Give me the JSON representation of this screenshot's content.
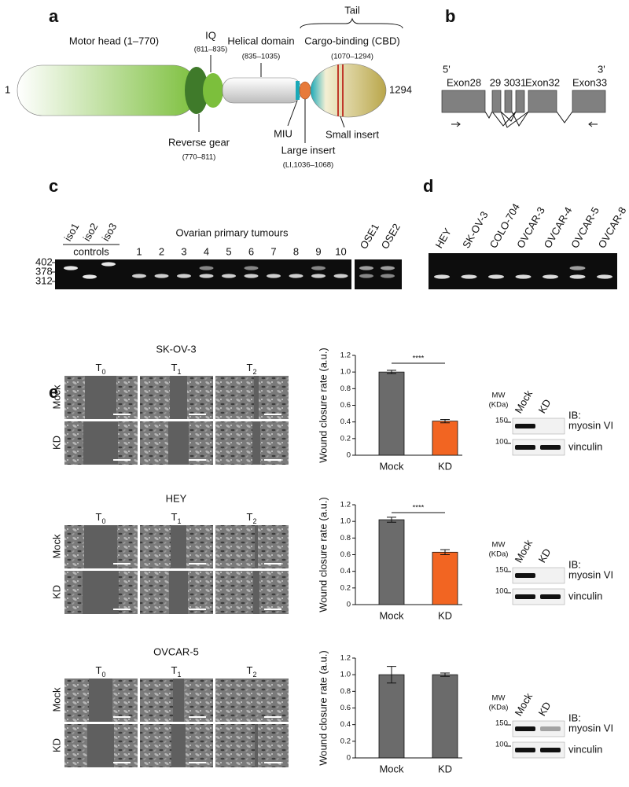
{
  "panel_a": {
    "label": "a",
    "motor_head": "Motor head (1–770)",
    "iq": "IQ",
    "iq_range": "(811–835)",
    "helical": "Helical domain",
    "helical_range": "(835–1035)",
    "cbd": "Cargo-binding (CBD)",
    "cbd_range": "(1070–1294)",
    "tail": "Tail",
    "start": "1",
    "end": "1294",
    "reverse_gear": "Reverse gear",
    "reverse_gear_range": "(770–811)",
    "miu": "MIU",
    "large_insert": "Large insert",
    "large_insert_range": "(LI,1036–1068)",
    "small_insert": "Small insert"
  },
  "panel_b": {
    "label": "b",
    "five_prime": "5'",
    "three_prime": "3'",
    "exons": [
      "Exon28",
      "29",
      "30",
      "31",
      "Exon32",
      "Exon33"
    ]
  },
  "panel_c": {
    "label": "c",
    "lanes": [
      "iso1",
      "iso2",
      "iso3"
    ],
    "controls": "controls",
    "tumours_title": "Ovarian primary tumours",
    "tumours": [
      "1",
      "2",
      "3",
      "4",
      "5",
      "6",
      "7",
      "8",
      "9",
      "10"
    ],
    "ose": [
      "OSE1",
      "OSE2"
    ],
    "sizes": [
      "402",
      "378",
      "312"
    ]
  },
  "panel_d": {
    "label": "d",
    "lanes": [
      "HEY",
      "SK-OV-3",
      "COLO-704",
      "OVCAR-3",
      "OVCAR-4",
      "OVCAR-5",
      "OVCAR-8"
    ]
  },
  "panel_e": {
    "label": "e",
    "blocks": [
      {
        "cell_line": "SK-OV-3",
        "time_points": [
          {
            "base": "T",
            "sub": "0"
          },
          {
            "base": "T",
            "sub": "1"
          },
          {
            "base": "T",
            "sub": "2"
          }
        ],
        "rows": [
          "Mock",
          "KD"
        ],
        "blot": {
          "mw": "MW",
          "unit": "(KDa)",
          "lanes": [
            "Mock",
            "KD"
          ],
          "ib": "IB:",
          "targets": [
            "myosin VI",
            "vinculin"
          ],
          "markers": [
            "150",
            "100"
          ]
        }
      },
      {
        "cell_line": "HEY",
        "time_points": [
          {
            "base": "T",
            "sub": "0"
          },
          {
            "base": "T",
            "sub": "1"
          },
          {
            "base": "T",
            "sub": "2"
          }
        ],
        "rows": [
          "Mock",
          "KD"
        ],
        "blot": {
          "mw": "MW",
          "unit": "(KDa)",
          "lanes": [
            "Mock",
            "KD"
          ],
          "ib": "IB:",
          "targets": [
            "myosin VI",
            "vinculin"
          ],
          "markers": [
            "150",
            "100"
          ]
        }
      },
      {
        "cell_line": "OVCAR-5",
        "time_points": [
          {
            "base": "T",
            "sub": "0"
          },
          {
            "base": "T",
            "sub": "1"
          },
          {
            "base": "T",
            "sub": "2"
          }
        ],
        "rows": [
          "Mock",
          "KD"
        ],
        "blot": {
          "mw": "MW",
          "unit": "(KDa)",
          "lanes": [
            "Mock",
            "KD"
          ],
          "ib": "IB:",
          "targets": [
            "myosin VI",
            "vinculin"
          ],
          "markers": [
            "150",
            "100"
          ]
        }
      }
    ]
  },
  "chart_data": [
    {
      "type": "bar",
      "ylabel": "Wound closure rate (a.u.)",
      "categories": [
        "Mock",
        "KD"
      ],
      "values": [
        1.0,
        0.41
      ],
      "errors": [
        0.02,
        0.02
      ],
      "colors": [
        "#6b6b6b",
        "#f26522"
      ],
      "significance": "****",
      "ylim": [
        0,
        1.2
      ],
      "yticks": [
        0,
        0.2,
        0.4,
        0.6,
        0.8,
        {
          "value": 1,
          "label": "1.0"
        },
        1.2
      ]
    },
    {
      "type": "bar",
      "ylabel": "Wound closure rate (a.u.)",
      "categories": [
        "Mock",
        "KD"
      ],
      "values": [
        1.02,
        0.63
      ],
      "errors": [
        0.03,
        0.03
      ],
      "colors": [
        "#6b6b6b",
        "#f26522"
      ],
      "significance": "****",
      "ylim": [
        0,
        1.2
      ],
      "yticks": [
        0,
        0.2,
        0.4,
        0.6,
        0.8,
        {
          "value": 1,
          "label": "1.0"
        },
        1.2
      ]
    },
    {
      "type": "bar",
      "ylabel": "Wound closure rate (a.u.)",
      "categories": [
        "Mock",
        "KD"
      ],
      "values": [
        1.0,
        1.0
      ],
      "errors": [
        0.1,
        0.02
      ],
      "colors": [
        "#6b6b6b",
        "#6b6b6b"
      ],
      "ylim": [
        0,
        1.2
      ],
      "yticks": [
        0,
        0.2,
        0.4,
        0.6,
        0.8,
        {
          "value": 1,
          "label": "1.0"
        },
        1.2
      ]
    }
  ]
}
